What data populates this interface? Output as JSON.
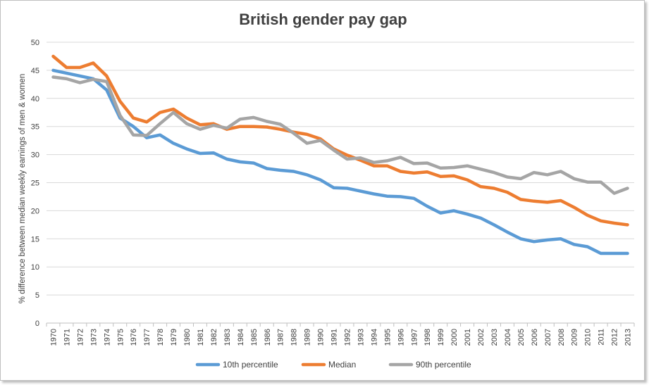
{
  "chart_data": {
    "type": "line",
    "title": "British gender pay gap",
    "xlabel": "",
    "ylabel": "% difference between median weekly earnings of men & women",
    "ylim": [
      0,
      50
    ],
    "yticks": [
      0,
      5,
      10,
      15,
      20,
      25,
      30,
      35,
      40,
      45,
      50
    ],
    "grid": true,
    "legend_position": "bottom",
    "categories": [
      "1970",
      "1971",
      "1972",
      "1973",
      "1974",
      "1975",
      "1976",
      "1977",
      "1978",
      "1979",
      "1980",
      "1981",
      "1982",
      "1983",
      "1984",
      "1985",
      "1986",
      "1987",
      "1988",
      "1989",
      "1990",
      "1991",
      "1992",
      "1993",
      "1994",
      "1995",
      "1996",
      "1997",
      "1998",
      "1999",
      "2000",
      "2001",
      "2002",
      "2003",
      "2004",
      "2005",
      "2006",
      "2007",
      "2008",
      "2009",
      "2010",
      "2011",
      "2012",
      "2013"
    ],
    "series": [
      {
        "name": "10th percentile",
        "color": "#5b9bd5",
        "values": [
          45.0,
          44.5,
          44.0,
          43.5,
          41.5,
          36.5,
          35.0,
          33.0,
          33.5,
          32.0,
          31.0,
          30.2,
          30.3,
          29.2,
          28.7,
          28.5,
          27.5,
          27.2,
          27.0,
          26.4,
          25.5,
          24.1,
          24.0,
          23.5,
          23.0,
          22.6,
          22.5,
          22.2,
          20.8,
          19.6,
          20.0,
          19.4,
          18.7,
          17.5,
          16.2,
          15.0,
          14.5,
          14.8,
          15.0,
          14.0,
          13.6,
          12.4,
          12.4,
          12.4
        ]
      },
      {
        "name": "Median",
        "color": "#ed7d31",
        "values": [
          47.5,
          45.5,
          45.5,
          46.3,
          44.0,
          39.5,
          36.5,
          35.8,
          37.5,
          38.1,
          36.5,
          35.3,
          35.5,
          34.5,
          35.0,
          35.0,
          34.9,
          34.5,
          34.0,
          33.6,
          32.8,
          31.0,
          29.9,
          29.0,
          28.0,
          28.0,
          27.0,
          26.7,
          26.9,
          26.1,
          26.2,
          25.5,
          24.3,
          24.0,
          23.3,
          22.0,
          21.7,
          21.5,
          21.8,
          20.6,
          19.2,
          18.2,
          17.8,
          17.5
        ]
      },
      {
        "name": "90th percentile",
        "color": "#a5a5a5",
        "values": [
          43.8,
          43.5,
          42.8,
          43.4,
          43.0,
          37.0,
          33.5,
          33.4,
          35.5,
          37.5,
          35.5,
          34.5,
          35.2,
          34.7,
          36.3,
          36.6,
          35.9,
          35.4,
          33.8,
          32.0,
          32.5,
          30.8,
          29.2,
          29.4,
          28.6,
          28.9,
          29.5,
          28.4,
          28.5,
          27.6,
          27.7,
          28.0,
          27.4,
          26.8,
          26.0,
          25.7,
          26.8,
          26.4,
          27.0,
          25.7,
          25.1,
          25.1,
          23.1,
          24.0
        ]
      }
    ]
  }
}
